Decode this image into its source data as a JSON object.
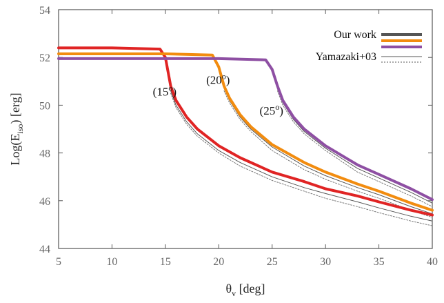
{
  "chart_data": {
    "type": "line",
    "xlabel": {
      "main": "θ",
      "sub": "v",
      "rest": " [deg]"
    },
    "ylabel": {
      "main": "Log(E",
      "sub": "iso",
      "rest": ") [erg]"
    },
    "xlim": [
      5,
      40
    ],
    "ylim": [
      44,
      54
    ],
    "xticks": [
      5,
      10,
      15,
      20,
      25,
      30,
      35,
      40
    ],
    "yticks": [
      44,
      46,
      48,
      50,
      52,
      54
    ],
    "grid": false,
    "legend": {
      "placement": "top-right",
      "entries": [
        {
          "label": "Our work",
          "style": "thick",
          "colors": [
            "#555555",
            "#f28c0f",
            "#8e4fa3"
          ]
        },
        {
          "label": "Yamazaki+03",
          "style": "thin",
          "colors": [
            "#555555",
            "#555555"
          ]
        }
      ]
    },
    "annotations": [
      {
        "text": "(15",
        "sup": "o",
        "close": ")",
        "x": 15,
        "y": 50.4
      },
      {
        "text": "(20",
        "sup": "o",
        "close": ")",
        "x": 20,
        "y": 50.9
      },
      {
        "text": "(25",
        "sup": "o",
        "close": ")",
        "x": 25,
        "y": 49.6
      }
    ],
    "series": [
      {
        "group": "Our work",
        "color": "#e02424",
        "thick": true,
        "theta_j": 15,
        "x": [
          5,
          10,
          14.5,
          15,
          15.5,
          16,
          17,
          18,
          20,
          22,
          25,
          28,
          30,
          33,
          35,
          38,
          40
        ],
        "y": [
          52.4,
          52.4,
          52.35,
          52.0,
          50.8,
          50.2,
          49.5,
          49.0,
          48.3,
          47.8,
          47.2,
          46.8,
          46.5,
          46.2,
          45.95,
          45.6,
          45.4
        ]
      },
      {
        "group": "Our work",
        "color": "#f28c0f",
        "thick": true,
        "theta_j": 20,
        "x": [
          5,
          10,
          15,
          19.4,
          20,
          20.5,
          21,
          22,
          23,
          25,
          28,
          30,
          33,
          35,
          38,
          40
        ],
        "y": [
          52.15,
          52.15,
          52.15,
          52.1,
          51.6,
          50.8,
          50.3,
          49.6,
          49.1,
          48.35,
          47.6,
          47.2,
          46.7,
          46.4,
          45.9,
          45.6
        ]
      },
      {
        "group": "Our work",
        "color": "#8e4fa3",
        "thick": true,
        "theta_j": 25,
        "x": [
          5,
          10,
          15,
          20,
          24.4,
          25,
          25.5,
          26,
          27,
          28,
          30,
          33,
          35,
          38,
          40
        ],
        "y": [
          51.95,
          51.95,
          51.95,
          51.95,
          51.9,
          51.5,
          50.8,
          50.2,
          49.5,
          49.0,
          48.3,
          47.5,
          47.1,
          46.5,
          46.05
        ]
      },
      {
        "group": "Yamazaki+03",
        "color": "#555555",
        "dash": "",
        "theta_j": 15,
        "x": [
          15.5,
          16,
          17,
          18,
          20,
          22,
          25,
          28,
          30,
          33,
          35,
          38,
          40
        ],
        "y": [
          50.6,
          50.0,
          49.3,
          48.8,
          48.1,
          47.6,
          47.0,
          46.55,
          46.3,
          45.95,
          45.7,
          45.35,
          45.15
        ]
      },
      {
        "group": "Yamazaki+03",
        "color": "#777777",
        "dash": "2,2",
        "theta_j": 15,
        "x": [
          15.5,
          16,
          17,
          18,
          20,
          22,
          25,
          28,
          30,
          33,
          35,
          38,
          40
        ],
        "y": [
          50.5,
          49.9,
          49.2,
          48.7,
          48.0,
          47.45,
          46.85,
          46.4,
          46.1,
          45.75,
          45.5,
          45.15,
          44.95
        ]
      },
      {
        "group": "Yamazaki+03",
        "color": "#555555",
        "dash": "",
        "theta_j": 20,
        "x": [
          20.5,
          21,
          22,
          23,
          25,
          28,
          30,
          33,
          35,
          38,
          40
        ],
        "y": [
          50.7,
          50.2,
          49.5,
          49.0,
          48.25,
          47.45,
          47.05,
          46.55,
          46.25,
          45.75,
          45.45
        ]
      },
      {
        "group": "Yamazaki+03",
        "color": "#777777",
        "dash": "2,2",
        "theta_j": 20,
        "x": [
          20.5,
          21,
          22,
          23,
          25,
          28,
          30,
          33,
          35,
          38,
          40
        ],
        "y": [
          50.6,
          50.1,
          49.4,
          48.9,
          48.1,
          47.3,
          46.9,
          46.4,
          46.1,
          45.6,
          45.3
        ]
      },
      {
        "group": "Yamazaki+03",
        "color": "#555555",
        "dash": "",
        "theta_j": 25,
        "x": [
          25.5,
          26,
          27,
          28,
          30,
          33,
          35,
          38,
          40
        ],
        "y": [
          50.7,
          50.1,
          49.4,
          48.9,
          48.2,
          47.35,
          46.95,
          46.35,
          45.9
        ]
      },
      {
        "group": "Yamazaki+03",
        "color": "#777777",
        "dash": "2,2",
        "theta_j": 25,
        "x": [
          25.5,
          26,
          27,
          28,
          30,
          33,
          35,
          38,
          40
        ],
        "y": [
          50.6,
          50.0,
          49.3,
          48.8,
          48.1,
          47.2,
          46.8,
          46.2,
          45.75
        ]
      }
    ]
  }
}
